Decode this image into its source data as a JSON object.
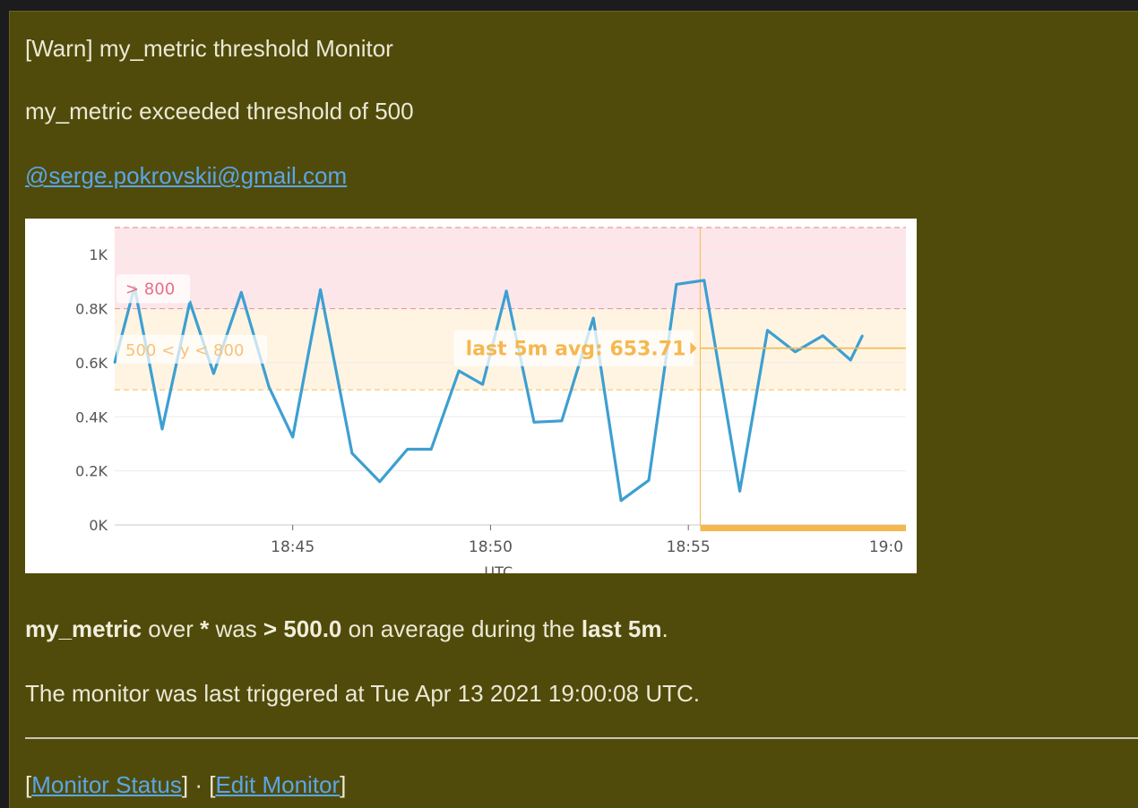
{
  "message": {
    "title": "[Warn] my_metric threshold Monitor",
    "subtitle": "my_metric exceeded threshold of 500",
    "mention": "@serge.pokrovskii@gmail.com",
    "summary": {
      "metric": "my_metric",
      "over_text": " over ",
      "scope": "*",
      "was_text": " was ",
      "condition": "> 500.0",
      "during_text": " on average during the ",
      "window": "last 5m",
      "end_text": "."
    },
    "triggered_text": "The monitor was last triggered at Tue Apr 13 2021 19:00:08 UTC.",
    "links": {
      "open_bracket_1": "[",
      "monitor_status": "Monitor Status",
      "separator": "] · [",
      "edit_monitor": "Edit Monitor",
      "close_bracket_2": "]"
    }
  },
  "chart_data": {
    "type": "line",
    "title": "",
    "xlabel": "UTC",
    "ylabel": "",
    "ylim": [
      0,
      1100
    ],
    "y_ticks": [
      {
        "value": 0,
        "label": "0K"
      },
      {
        "value": 200,
        "label": "0.2K"
      },
      {
        "value": 400,
        "label": "0.4K"
      },
      {
        "value": 600,
        "label": "0.6K"
      },
      {
        "value": 800,
        "label": "0.8K"
      },
      {
        "value": 1000,
        "label": "1K"
      }
    ],
    "x_range_minutes": [
      40.5,
      60.5
    ],
    "x_ticks": [
      {
        "minute": 45,
        "label": "18:45"
      },
      {
        "minute": 50,
        "label": "18:50"
      },
      {
        "minute": 55,
        "label": "18:55"
      },
      {
        "minute": 60,
        "label": "19:0"
      }
    ],
    "grid": true,
    "thresholds": {
      "alert": {
        "label": "> 800",
        "min": 800,
        "max": 1100,
        "color": "#fde6ea",
        "line_color": "#e99aa4",
        "text_color": "#e86f84"
      },
      "warn": {
        "label": "500 < y < 800",
        "min": 500,
        "max": 800,
        "color": "#fff4e2",
        "line_color": "#f7c97a",
        "text_color": "#f5c27a"
      }
    },
    "evaluation_window": {
      "label": "last 5m avg: 653.71",
      "avg": 653.71,
      "start_minute": 55.3,
      "end_minute": 60.5,
      "color": "#f5b84f"
    },
    "series": [
      {
        "color": "#3d9fd1",
        "points": [
          [
            40.5,
            600
          ],
          [
            41.0,
            880
          ],
          [
            41.7,
            355
          ],
          [
            42.4,
            825
          ],
          [
            43.0,
            560
          ],
          [
            43.7,
            860
          ],
          [
            44.4,
            510
          ],
          [
            45.0,
            325
          ],
          [
            45.7,
            870
          ],
          [
            46.5,
            265
          ],
          [
            47.2,
            160
          ],
          [
            47.9,
            280
          ],
          [
            48.5,
            280
          ],
          [
            49.2,
            570
          ],
          [
            49.8,
            520
          ],
          [
            50.4,
            865
          ],
          [
            51.1,
            380
          ],
          [
            51.8,
            385
          ],
          [
            52.6,
            765
          ],
          [
            53.3,
            90
          ],
          [
            54.0,
            165
          ],
          [
            54.7,
            890
          ],
          [
            55.4,
            905
          ],
          [
            56.3,
            125
          ],
          [
            57.0,
            720
          ],
          [
            57.7,
            640
          ],
          [
            58.4,
            700
          ],
          [
            59.1,
            610
          ],
          [
            59.4,
            700
          ]
        ]
      }
    ]
  }
}
